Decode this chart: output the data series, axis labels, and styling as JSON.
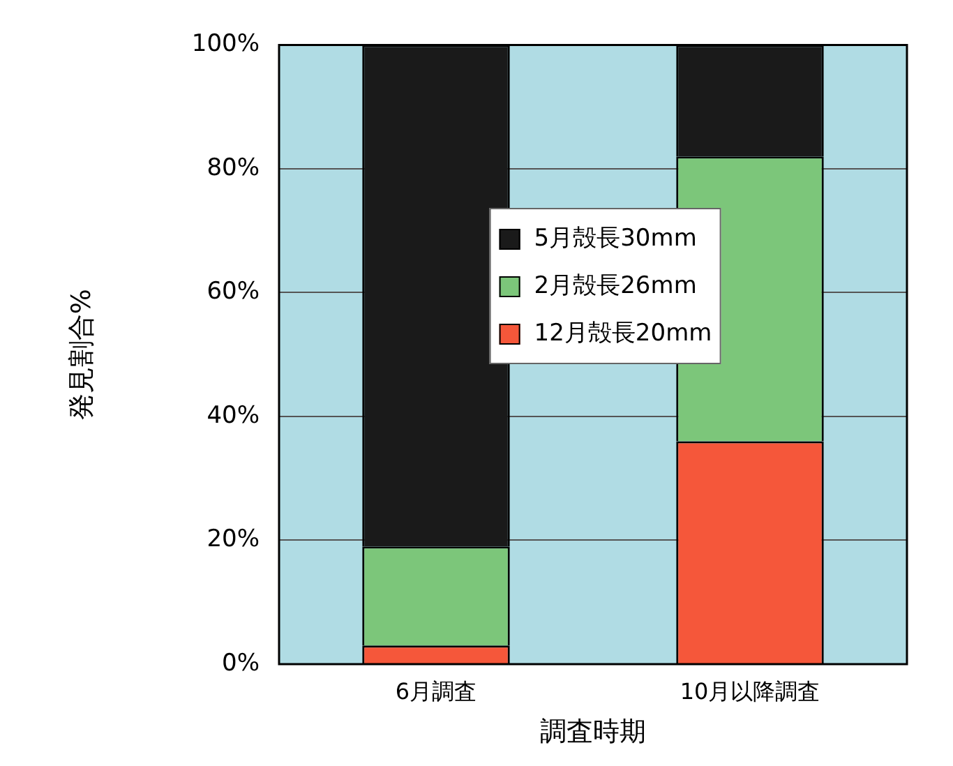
{
  "chart_data": {
    "type": "bar",
    "stacked": true,
    "xlabel": "調査時期",
    "ylabel": "発見割合%",
    "categories": [
      "6月調査",
      "10月以降調査"
    ],
    "series": [
      {
        "name": "12月殻長20mm",
        "color": "#f5573a",
        "values": [
          3,
          36
        ]
      },
      {
        "name": "2月殻長26mm",
        "color": "#7cc67a",
        "values": [
          16,
          46
        ]
      },
      {
        "name": "5月殻長30mm",
        "color": "#1a1a1a",
        "values": [
          81,
          18
        ]
      }
    ],
    "ylim": [
      0,
      100
    ],
    "yticks": [
      {
        "value": 0,
        "label": "0%"
      },
      {
        "value": 20,
        "label": "20%"
      },
      {
        "value": 40,
        "label": "40%"
      },
      {
        "value": 60,
        "label": "60%"
      },
      {
        "value": 80,
        "label": "80%"
      },
      {
        "value": 100,
        "label": "100%"
      }
    ],
    "grid": "y",
    "legend": "center"
  }
}
